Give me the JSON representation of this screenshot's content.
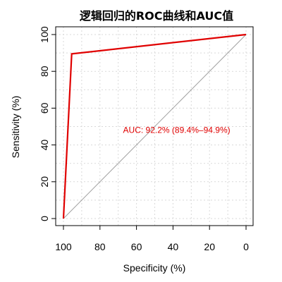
{
  "chart_data": {
    "type": "line",
    "title": "逻辑回归的ROC曲线和AUC值",
    "xlabel": "Specificity (%)",
    "ylabel": "Sensitivity (%)",
    "xlim": [
      100,
      0
    ],
    "ylim": [
      0,
      100
    ],
    "x_reversed": true,
    "x_ticks": [
      100,
      80,
      60,
      40,
      20,
      0
    ],
    "y_ticks": [
      0,
      20,
      40,
      60,
      80,
      100
    ],
    "grid": true,
    "series": [
      {
        "color": "#e00000",
        "x": [
          100,
          95.5,
          95.5,
          0
        ],
        "y": [
          0,
          89.5,
          89.5,
          100
        ]
      }
    ],
    "reference_line": {
      "x": [
        100,
        0
      ],
      "y": [
        0,
        100
      ],
      "color": "#a0a0a0"
    },
    "annotation": {
      "text": "AUC: 92.2% (89.4%–94.9%)",
      "x": 38,
      "y": 48,
      "color": "#e00000"
    }
  }
}
